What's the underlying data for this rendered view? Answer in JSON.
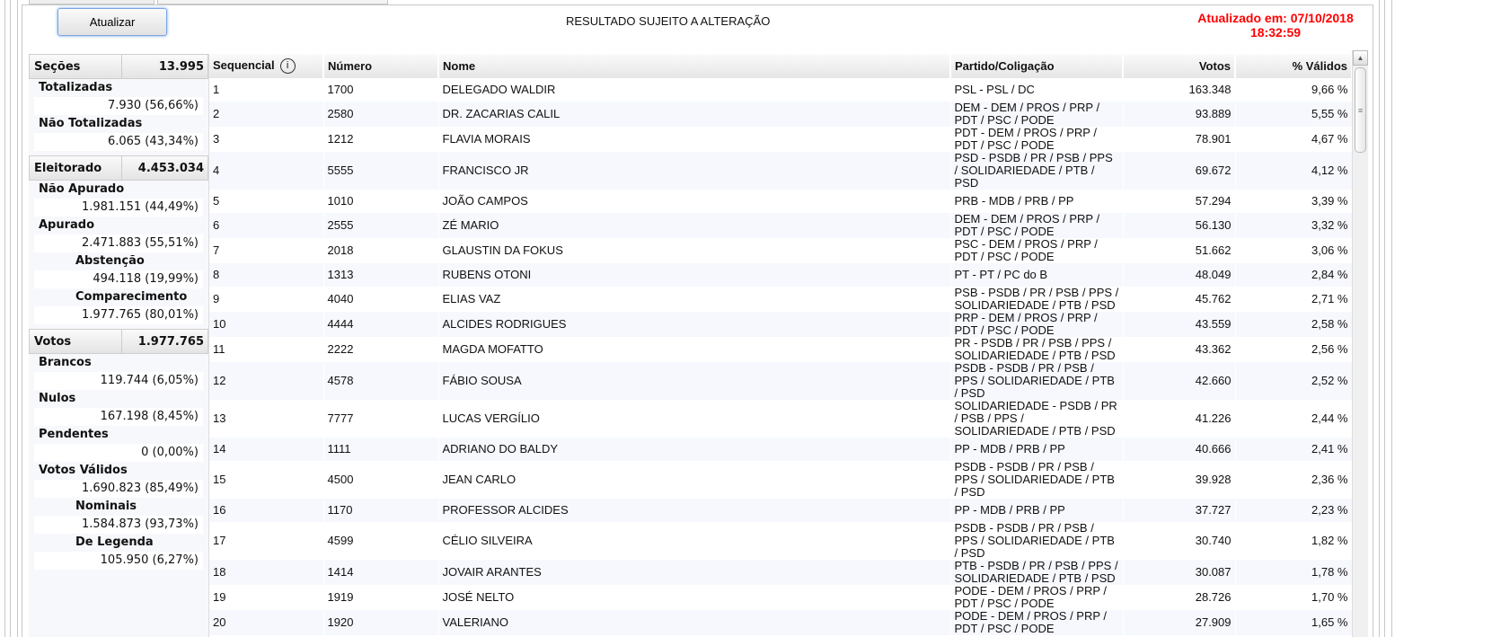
{
  "toolbar": {
    "refresh_label": "Atualizar",
    "notice": "RESULTADO SUJEITO A ALTERAÇÃO",
    "updated_line1": "Atualizado em: 07/10/2018",
    "updated_line2": "18:32:59",
    "updated_color": "#ff0000"
  },
  "summary": {
    "secoes": {
      "label": "Seções",
      "value": "13.995"
    },
    "totalizadas": {
      "label": "Totalizadas",
      "value": "7.930 (56,66%)"
    },
    "nao_totalizadas": {
      "label": "Não Totalizadas",
      "value": "6.065 (43,34%)"
    },
    "eleitorado": {
      "label": "Eleitorado",
      "value": "4.453.034"
    },
    "nao_apurado": {
      "label": "Não Apurado",
      "value": "1.981.151 (44,49%)"
    },
    "apurado": {
      "label": "Apurado",
      "value": "2.471.883 (55,51%)"
    },
    "abstencao": {
      "label": "Abstenção",
      "value": "494.118 (19,99%)"
    },
    "comparecimento": {
      "label": "Comparecimento",
      "value": "1.977.765 (80,01%)"
    },
    "votos": {
      "label": "Votos",
      "value": "1.977.765"
    },
    "brancos": {
      "label": "Brancos",
      "value": "119.744 (6,05%)"
    },
    "nulos": {
      "label": "Nulos",
      "value": "167.198 (8,45%)"
    },
    "pendentes": {
      "label": "Pendentes",
      "value": "0 (0,00%)"
    },
    "validos": {
      "label": "Votos Válidos",
      "value": "1.690.823 (85,49%)"
    },
    "nominais": {
      "label": "Nominais",
      "value": "1.584.873 (93,73%)"
    },
    "legenda": {
      "label": "De Legenda",
      "value": "105.950 (6,27%)"
    }
  },
  "table": {
    "columns": [
      "Sequencial",
      "Número",
      "Nome",
      "Partido/Coligação",
      "Votos",
      "% Válidos"
    ],
    "rows": [
      [
        "1",
        "1700",
        "DELEGADO WALDIR",
        "PSL - PSL / DC",
        "163.348",
        "9,66 %"
      ],
      [
        "2",
        "2580",
        "DR. ZACARIAS CALIL",
        "DEM - DEM / PROS / PRP / PDT / PSC / PODE",
        "93.889",
        "5,55 %"
      ],
      [
        "3",
        "1212",
        "FLAVIA MORAIS",
        "PDT - DEM / PROS / PRP / PDT / PSC / PODE",
        "78.901",
        "4,67 %"
      ],
      [
        "4",
        "5555",
        "FRANCISCO JR",
        "PSD - PSDB / PR / PSB / PPS / SOLIDARIEDADE / PTB / PSD",
        "69.672",
        "4,12 %"
      ],
      [
        "5",
        "1010",
        "JOÃO CAMPOS",
        "PRB - MDB / PRB / PP",
        "57.294",
        "3,39 %"
      ],
      [
        "6",
        "2555",
        "ZÉ MARIO",
        "DEM - DEM / PROS / PRP / PDT / PSC / PODE",
        "56.130",
        "3,32 %"
      ],
      [
        "7",
        "2018",
        "GLAUSTIN DA FOKUS",
        "PSC - DEM / PROS / PRP / PDT / PSC / PODE",
        "51.662",
        "3,06 %"
      ],
      [
        "8",
        "1313",
        "RUBENS OTONI",
        "PT - PT / PC do B",
        "48.049",
        "2,84 %"
      ],
      [
        "9",
        "4040",
        "ELIAS VAZ",
        "PSB - PSDB / PR / PSB / PPS / SOLIDARIEDADE / PTB / PSD",
        "45.762",
        "2,71 %"
      ],
      [
        "10",
        "4444",
        "ALCIDES RODRIGUES",
        "PRP - DEM / PROS / PRP / PDT / PSC / PODE",
        "43.559",
        "2,58 %"
      ],
      [
        "11",
        "2222",
        "MAGDA MOFATTO",
        "PR - PSDB / PR / PSB / PPS / SOLIDARIEDADE / PTB / PSD",
        "43.362",
        "2,56 %"
      ],
      [
        "12",
        "4578",
        "FÁBIO SOUSA",
        "PSDB - PSDB / PR / PSB / PPS / SOLIDARIEDADE / PTB / PSD",
        "42.660",
        "2,52 %"
      ],
      [
        "13",
        "7777",
        "LUCAS VERGÍLIO",
        "SOLIDARIEDADE - PSDB / PR / PSB / PPS / SOLIDARIEDADE / PTB / PSD",
        "41.226",
        "2,44 %"
      ],
      [
        "14",
        "1111",
        "ADRIANO DO BALDY",
        "PP - MDB / PRB / PP",
        "40.666",
        "2,41 %"
      ],
      [
        "15",
        "4500",
        "JEAN CARLO",
        "PSDB - PSDB / PR / PSB / PPS / SOLIDARIEDADE / PTB / PSD",
        "39.928",
        "2,36 %"
      ],
      [
        "16",
        "1170",
        "PROFESSOR ALCIDES",
        "PP - MDB / PRB / PP",
        "37.727",
        "2,23 %"
      ],
      [
        "17",
        "4599",
        "CÉLIO SILVEIRA",
        "PSDB - PSDB / PR / PSB / PPS / SOLIDARIEDADE / PTB / PSD",
        "30.740",
        "1,82 %"
      ],
      [
        "18",
        "1414",
        "JOVAIR ARANTES",
        "PTB - PSDB / PR / PSB / PPS / SOLIDARIEDADE / PTB / PSD",
        "30.087",
        "1,78 %"
      ],
      [
        "19",
        "1919",
        "JOSÉ NELTO",
        "PODE - DEM / PROS / PRP / PDT / PSC / PODE",
        "28.726",
        "1,70 %"
      ],
      [
        "20",
        "1920",
        "VALERIANO",
        "PODE - DEM / PROS / PRP / PDT / PSC / PODE",
        "27.909",
        "1,65 %"
      ]
    ]
  }
}
